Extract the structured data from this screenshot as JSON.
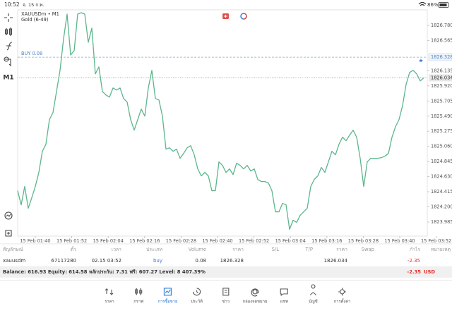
{
  "status_bar": {
    "time": "10:52",
    "date": "จ. 15 ก.พ.",
    "battery": "86%"
  },
  "toolbar": {
    "timeframe": "M1"
  },
  "chart_data": {
    "type": "line",
    "title": "XAUUSDm • M1",
    "subtitle": "Gold (6-49)",
    "color": "#5cb68b",
    "xtick_labels": [
      "15 Feb 01:40",
      "15 Feb 01:52",
      "15 Feb 02:04",
      "15 Feb 02:16",
      "15 Feb 02:28",
      "15 Feb 02:40",
      "15 Feb 02:52",
      "15 Feb 03:04",
      "15 Feb 03:16",
      "15 Feb 03:28",
      "15 Feb 03:40",
      "15 Feb 03:52"
    ],
    "values": [
      1824.43,
      1824.23,
      1824.49,
      1824.18,
      1824.33,
      1824.49,
      1824.69,
      1824.99,
      1825.09,
      1825.44,
      1825.54,
      1825.84,
      1826.14,
      1826.59,
      1826.94,
      1826.36,
      1826.42,
      1826.94,
      1826.96,
      1826.94,
      1826.54,
      1826.74,
      1826.09,
      1826.19,
      1825.84,
      1825.79,
      1825.76,
      1825.89,
      1825.86,
      1825.89,
      1825.74,
      1825.69,
      1825.44,
      1825.29,
      1825.44,
      1825.59,
      1825.49,
      1825.89,
      1826.14,
      1825.74,
      1825.72,
      1825.49,
      1825.02,
      1825.04,
      1824.99,
      1825.02,
      1824.89,
      1824.96,
      1825.04,
      1825.07,
      1824.94,
      1824.74,
      1824.64,
      1824.69,
      1824.64,
      1824.43,
      1824.43,
      1824.84,
      1824.79,
      1824.69,
      1824.74,
      1824.66,
      1824.82,
      1824.79,
      1824.74,
      1824.79,
      1824.71,
      1824.74,
      1824.59,
      1824.56,
      1824.56,
      1824.54,
      1824.43,
      1824.13,
      1824.13,
      1824.25,
      1824.23,
      1823.88,
      1824.01,
      1823.98,
      1824.08,
      1824.13,
      1824.18,
      1824.49,
      1824.59,
      1824.64,
      1824.76,
      1824.69,
      1824.84,
      1824.99,
      1824.94,
      1825.09,
      1825.19,
      1825.14,
      1825.22,
      1825.29,
      1825.19,
      1824.89,
      1824.49,
      1824.84,
      1824.89,
      1824.89,
      1824.89,
      1824.9,
      1824.92,
      1824.96,
      1825.19,
      1825.34,
      1825.44,
      1825.64,
      1825.94,
      1826.11,
      1826.14,
      1826.09,
      1825.99,
      1826.034
    ],
    "ylim": [
      1823.785,
      1827.0
    ],
    "yticks": [
      {
        "value": 1826.78,
        "label": "1826.780"
      },
      1826.565,
      1826.135,
      {
        "value": 1825.92,
        "label": "1825.920"
      },
      1825.705,
      {
        "value": 1825.49,
        "label": "1825.490"
      },
      1825.275,
      {
        "value": 1825.06,
        "label": "1825.060"
      },
      1824.845,
      {
        "value": 1824.63,
        "label": "1824.630"
      },
      1824.415,
      {
        "value": 1824.2,
        "label": "1824.200"
      },
      1823.985
    ],
    "buy_line": {
      "label": "BUY 0.08",
      "value": 1826.328
    },
    "price_line": 1826.034
  },
  "table": {
    "columns": [
      "สัญลักษณ์",
      "ตั๋ว",
      "เวลา",
      "ประเภท",
      "Volume",
      "ราคา",
      "S/L",
      "T/P",
      "ราคา",
      "Swap",
      "กำไร",
      "หมายเหตุ"
    ],
    "row": {
      "symbol": "xauusdm",
      "ticket": "67117280",
      "time": "02.15 03:52",
      "type": "buy",
      "volume": "0.08",
      "open_price": "1826.328",
      "price": "1826.034",
      "profit": "-2.35"
    }
  },
  "balance": {
    "text": "Balance: 616.93 Equity: 614.58 หลักประกัน: 7.31 ฟรี: 607.27 Level: 8 407.39%",
    "profit": "-2.35",
    "currency": "USD"
  },
  "nav": [
    "ราคา",
    "กราฟ",
    "การซื้อขาย",
    "ประวัติ",
    "ข่าว",
    "กล่องจดหมาย",
    "แชท",
    "บัญชี",
    "การตั้งค่า"
  ]
}
